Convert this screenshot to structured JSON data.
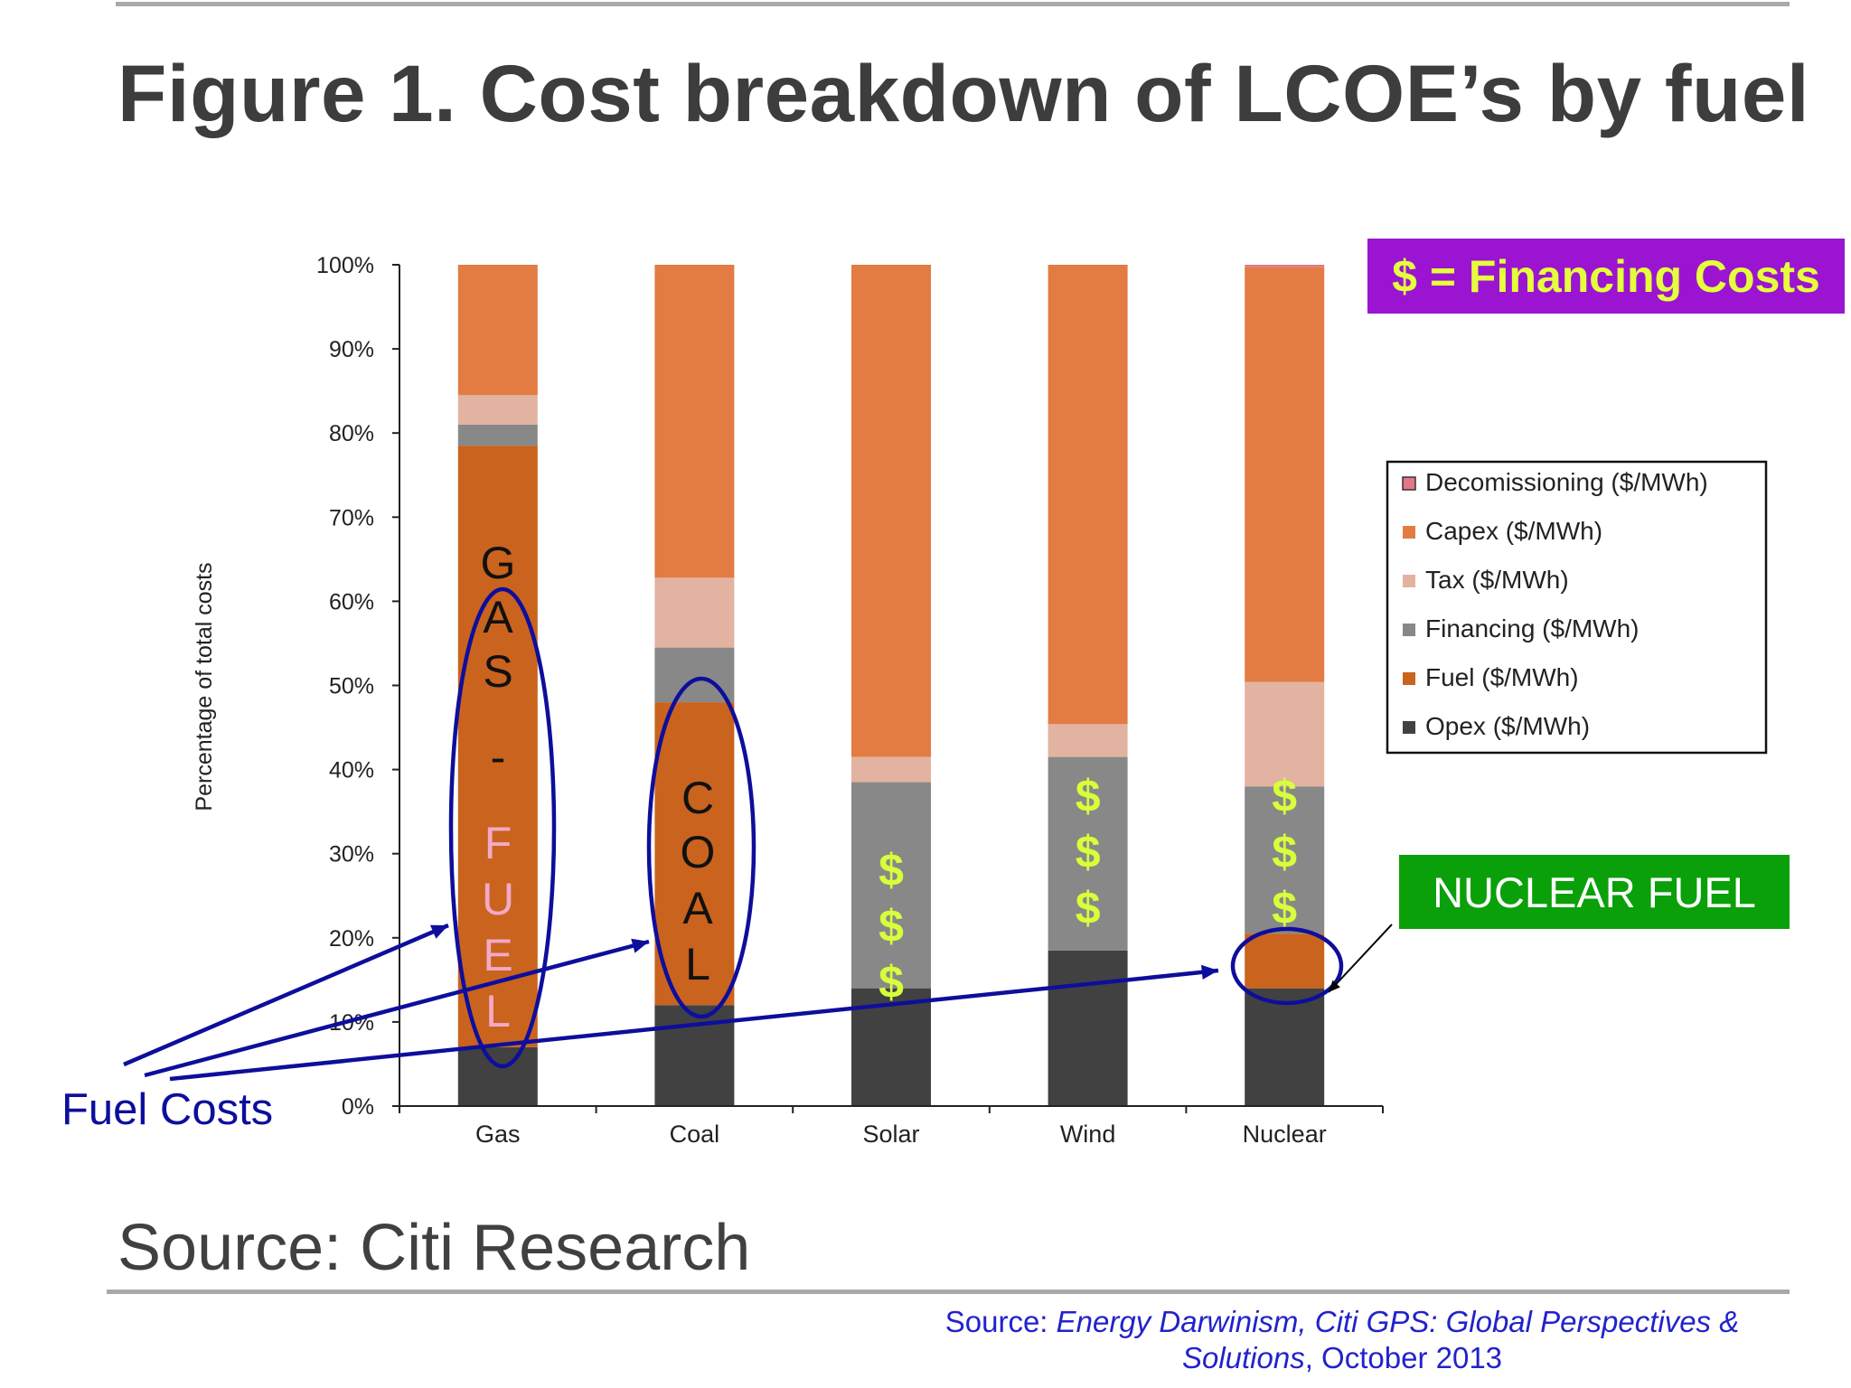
{
  "page": {
    "title": "Figure 1. Cost breakdown of LCOE’s by fuel",
    "source_label": "Source: Citi Research",
    "reference": {
      "prefix": "Source: ",
      "italic_1": "Energy Darwinism, Citi GPS: Global Perspectives &",
      "italic_2": "Solutions",
      "suffix": ", October 2013"
    }
  },
  "annotations": {
    "financing_box": "$ = Financing Costs",
    "nuclear_fuel_box": "NUCLEAR FUEL",
    "fuel_costs_label": "Fuel Costs",
    "gas_letters": [
      "G",
      "A",
      "S",
      "-",
      "F",
      "U",
      "E",
      "L"
    ],
    "coal_letters": [
      "C",
      "O",
      "A",
      "L"
    ],
    "dollar_sign": "$",
    "colors": {
      "annotation_blue": "#0e0e9c",
      "dollar_yellow": "#d7ff3a",
      "gas_letters_dark": "#111111",
      "gas_letters_light": "#f4a9c8"
    }
  },
  "chart_data": {
    "type": "bar",
    "stacked": true,
    "categories": [
      "Gas",
      "Coal",
      "Solar",
      "Wind",
      "Nuclear"
    ],
    "ylabel": "Percentage of total costs",
    "xlabel": "",
    "ylim": [
      0,
      100
    ],
    "y_ticks": [
      "0%",
      "10%",
      "20%",
      "30%",
      "40%",
      "50%",
      "60%",
      "70%",
      "80%",
      "90%",
      "100%"
    ],
    "grid": false,
    "legend_position": "right",
    "legend_order": [
      "Decomissioning ($/MWh)",
      "Capex ($/MWh)",
      "Tax ($/MWh)",
      "Financing ($/MWh)",
      "Fuel ($/MWh)",
      "Opex ($/MWh)"
    ],
    "series": [
      {
        "name": "Opex ($/MWh)",
        "color": "#414141",
        "values": [
          7,
          12,
          14,
          18.5,
          14
        ]
      },
      {
        "name": "Fuel ($/MWh)",
        "color": "#c9631e",
        "values": [
          71.5,
          36,
          0,
          0,
          6.5
        ]
      },
      {
        "name": "Financing ($/MWh)",
        "color": "#888888",
        "values": [
          2.5,
          6.5,
          24.5,
          23,
          17.5
        ]
      },
      {
        "name": "Tax ($/MWh)",
        "color": "#e2b3a0",
        "values": [
          3.5,
          8.3,
          3,
          3.9,
          12.4
        ]
      },
      {
        "name": "Capex ($/MWh)",
        "color": "#e27c43",
        "values": [
          15.5,
          37.2,
          58.5,
          54.6,
          49.3
        ]
      },
      {
        "name": "Decomissioning ($/MWh)",
        "color": "#e47787",
        "values": [
          0,
          0,
          0,
          0,
          0.3
        ]
      }
    ]
  }
}
